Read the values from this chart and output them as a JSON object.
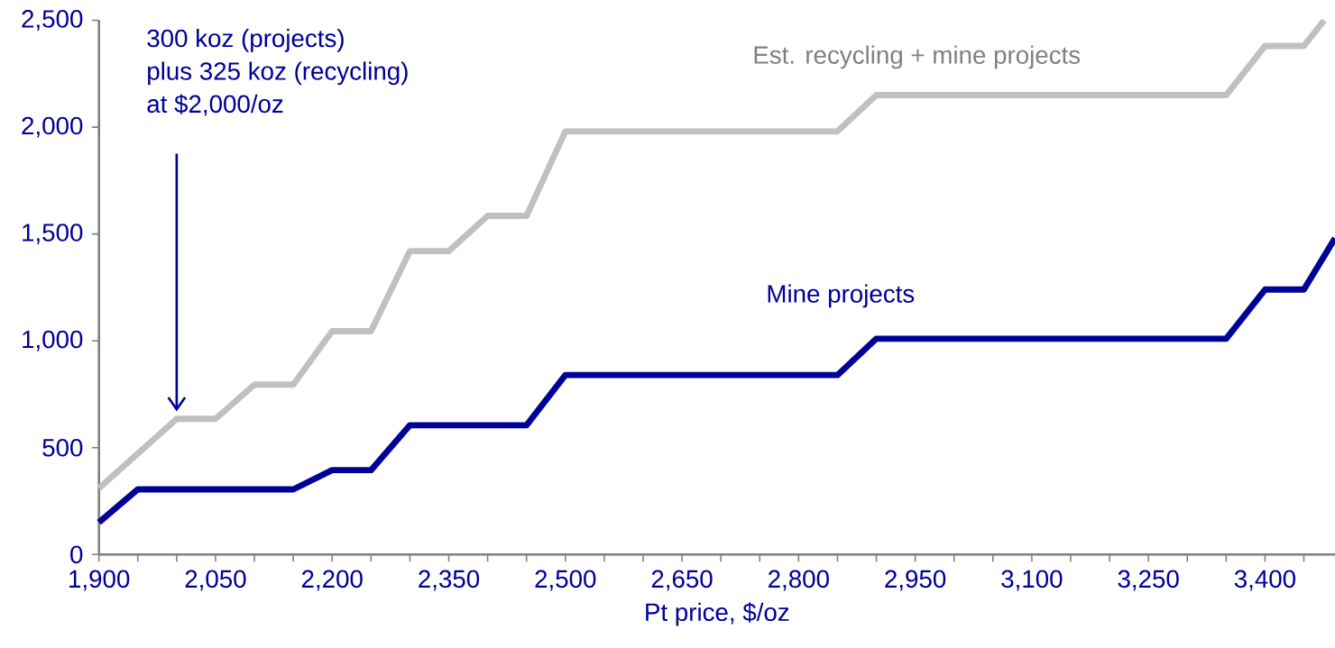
{
  "chart_data": {
    "type": "line",
    "xlabel": "Pt price, $/oz",
    "xlim": [
      1900,
      3490
    ],
    "ylim": [
      0,
      2500
    ],
    "xticks": [
      {
        "value": 1900,
        "label": "1,900"
      },
      {
        "value": 1950,
        "label": null
      },
      {
        "value": 2000,
        "label": null
      },
      {
        "value": 2050,
        "label": "2,050"
      },
      {
        "value": 2100,
        "label": null
      },
      {
        "value": 2150,
        "label": null
      },
      {
        "value": 2200,
        "label": "2,200"
      },
      {
        "value": 2250,
        "label": null
      },
      {
        "value": 2300,
        "label": null
      },
      {
        "value": 2350,
        "label": "2,350"
      },
      {
        "value": 2400,
        "label": null
      },
      {
        "value": 2450,
        "label": null
      },
      {
        "value": 2500,
        "label": "2,500"
      },
      {
        "value": 2550,
        "label": null
      },
      {
        "value": 2600,
        "label": null
      },
      {
        "value": 2650,
        "label": "2,650"
      },
      {
        "value": 2700,
        "label": null
      },
      {
        "value": 2750,
        "label": null
      },
      {
        "value": 2800,
        "label": "2,800"
      },
      {
        "value": 2850,
        "label": null
      },
      {
        "value": 2900,
        "label": null
      },
      {
        "value": 2950,
        "label": "2,950"
      },
      {
        "value": 3000,
        "label": null
      },
      {
        "value": 3050,
        "label": null
      },
      {
        "value": 3100,
        "label": "3,100"
      },
      {
        "value": 3150,
        "label": null
      },
      {
        "value": 3200,
        "label": null
      },
      {
        "value": 3250,
        "label": "3,250"
      },
      {
        "value": 3300,
        "label": null
      },
      {
        "value": 3350,
        "label": null
      },
      {
        "value": 3400,
        "label": "3,400"
      },
      {
        "value": 3450,
        "label": null
      }
    ],
    "yticks": [
      0,
      500,
      {
        "value": 1000,
        "label": "1,000"
      },
      {
        "value": 1500,
        "label": "1,500"
      },
      {
        "value": 2000,
        "label": "2,000"
      },
      {
        "value": 2500,
        "label": "2,500"
      }
    ],
    "marker": "none",
    "line_style": "solid",
    "series": [
      {
        "name": "Est. recycling + mine projects",
        "color": "#c0c0c0",
        "x": [
          1900,
          2000,
          2050,
          2100,
          2150,
          2200,
          2250,
          2300,
          2350,
          2400,
          2450,
          2500,
          2850,
          2900,
          3350,
          3400,
          3450,
          3476
        ],
        "values": [
          310,
          635,
          635,
          795,
          795,
          1045,
          1045,
          1420,
          1420,
          1585,
          1585,
          1980,
          1980,
          2150,
          2150,
          2380,
          2380,
          2500
        ]
      },
      {
        "name": "Mine projects",
        "color": "#000099",
        "x": [
          1900,
          1950,
          2150,
          2200,
          2250,
          2300,
          2450,
          2500,
          2850,
          2900,
          3350,
          3400,
          3450,
          3490
        ],
        "values": [
          150,
          305,
          305,
          395,
          395,
          605,
          605,
          840,
          840,
          1010,
          1010,
          1240,
          1240,
          1480
        ]
      }
    ],
    "annotations": [
      "300 koz (projects)\nplus 325 koz (recycling)\nat $2,000/oz"
    ]
  }
}
